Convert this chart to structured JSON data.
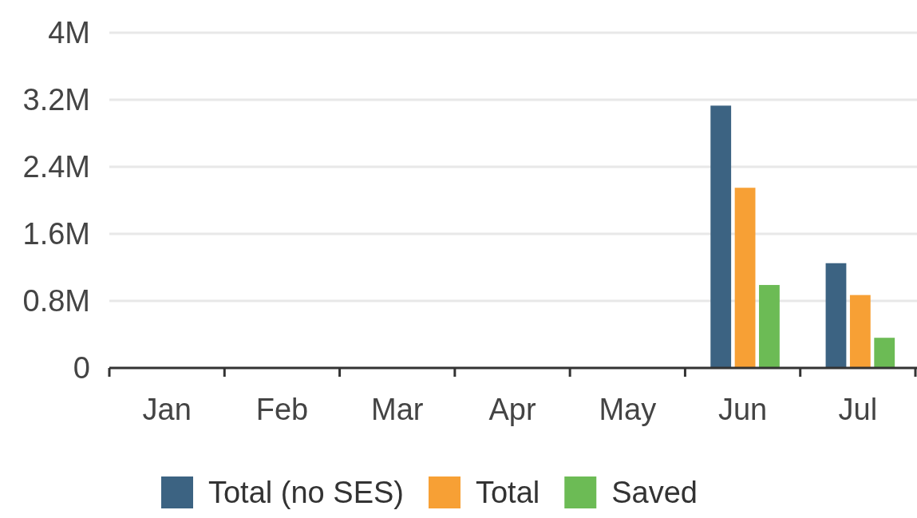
{
  "chart_data": {
    "type": "bar",
    "categories": [
      "Jan",
      "Feb",
      "Mar",
      "Apr",
      "May",
      "Jun",
      "Jul"
    ],
    "series": [
      {
        "name": "Total (no SES)",
        "color": "#3c6382",
        "values": [
          null,
          null,
          null,
          null,
          null,
          3130000,
          1250000
        ]
      },
      {
        "name": "Total",
        "color": "#f7a035",
        "values": [
          null,
          null,
          null,
          null,
          null,
          2150000,
          870000
        ]
      },
      {
        "name": "Saved",
        "color": "#6cbb55",
        "values": [
          null,
          null,
          null,
          null,
          null,
          990000,
          360000
        ]
      }
    ],
    "ylim": [
      0,
      4000000
    ],
    "yticks": [
      0,
      {
        "value": 800000,
        "label": "0.8M"
      },
      {
        "value": 1600000,
        "label": "1.6M"
      },
      {
        "value": 2400000,
        "label": "2.4M"
      },
      {
        "value": 3200000,
        "label": "3.2M"
      },
      {
        "value": 4000000,
        "label": "4M"
      }
    ],
    "grid": "y",
    "legend": "bottom"
  }
}
